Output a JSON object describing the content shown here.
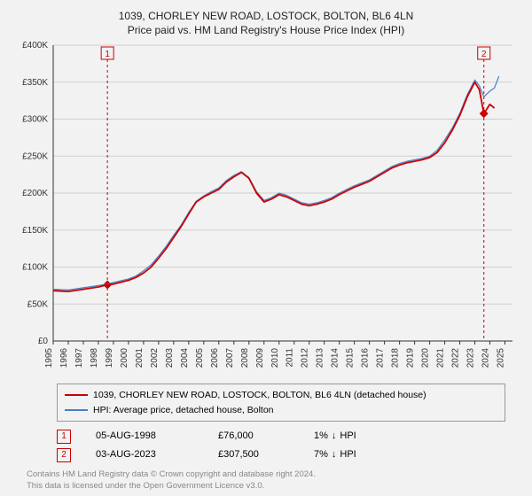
{
  "header": {
    "title": "1039, CHORLEY NEW ROAD, LOSTOCK, BOLTON, BL6 4LN",
    "subtitle": "Price paid vs. HM Land Registry's House Price Index (HPI)"
  },
  "chart": {
    "type": "line",
    "background_color": "#f2f2f2",
    "grid_color": "#cfcfcf",
    "axis_color": "#333333",
    "xlim": [
      1995,
      2025.5
    ],
    "ylim": [
      0,
      400000
    ],
    "ytick_step": 50000,
    "ytick_labels": [
      "£0",
      "£50K",
      "£100K",
      "£150K",
      "£200K",
      "£250K",
      "£300K",
      "£350K",
      "£400K"
    ],
    "xticks": [
      1995,
      1996,
      1997,
      1998,
      1999,
      2000,
      2001,
      2002,
      2003,
      2004,
      2005,
      2006,
      2007,
      2008,
      2009,
      2010,
      2011,
      2012,
      2013,
      2014,
      2015,
      2016,
      2017,
      2018,
      2019,
      2020,
      2021,
      2022,
      2023,
      2024,
      2025
    ],
    "label_fontsize": 10,
    "series": [
      {
        "name": "price_paid",
        "label": "1039, CHORLEY NEW ROAD, LOSTOCK, BOLTON, BL6 4LN (detached house)",
        "color": "#cc0000",
        "line_width": 1.8,
        "data": [
          [
            1995.0,
            68000
          ],
          [
            1996.0,
            67000
          ],
          [
            1997.0,
            70000
          ],
          [
            1998.0,
            73000
          ],
          [
            1998.6,
            76000
          ],
          [
            1999.0,
            77000
          ],
          [
            2000.0,
            82000
          ],
          [
            2000.5,
            86000
          ],
          [
            2001.0,
            92000
          ],
          [
            2001.5,
            100000
          ],
          [
            2002.0,
            112000
          ],
          [
            2002.5,
            125000
          ],
          [
            2003.0,
            140000
          ],
          [
            2003.5,
            155000
          ],
          [
            2004.0,
            172000
          ],
          [
            2004.5,
            188000
          ],
          [
            2005.0,
            195000
          ],
          [
            2005.5,
            200000
          ],
          [
            2006.0,
            205000
          ],
          [
            2006.5,
            215000
          ],
          [
            2007.0,
            222000
          ],
          [
            2007.5,
            228000
          ],
          [
            2008.0,
            220000
          ],
          [
            2008.5,
            200000
          ],
          [
            2009.0,
            188000
          ],
          [
            2009.5,
            192000
          ],
          [
            2010.0,
            198000
          ],
          [
            2010.5,
            195000
          ],
          [
            2011.0,
            190000
          ],
          [
            2011.5,
            185000
          ],
          [
            2012.0,
            183000
          ],
          [
            2012.5,
            185000
          ],
          [
            2013.0,
            188000
          ],
          [
            2013.5,
            192000
          ],
          [
            2014.0,
            198000
          ],
          [
            2014.5,
            203000
          ],
          [
            2015.0,
            208000
          ],
          [
            2015.5,
            212000
          ],
          [
            2016.0,
            216000
          ],
          [
            2016.5,
            222000
          ],
          [
            2017.0,
            228000
          ],
          [
            2017.5,
            234000
          ],
          [
            2018.0,
            238000
          ],
          [
            2018.5,
            241000
          ],
          [
            2019.0,
            243000
          ],
          [
            2019.5,
            245000
          ],
          [
            2020.0,
            248000
          ],
          [
            2020.5,
            255000
          ],
          [
            2021.0,
            268000
          ],
          [
            2021.5,
            285000
          ],
          [
            2022.0,
            305000
          ],
          [
            2022.5,
            330000
          ],
          [
            2023.0,
            350000
          ],
          [
            2023.3,
            340000
          ],
          [
            2023.6,
            307500
          ],
          [
            2024.0,
            320000
          ],
          [
            2024.3,
            315000
          ]
        ]
      },
      {
        "name": "hpi",
        "label": "HPI: Average price, detached house, Bolton",
        "color": "#4a7fc4",
        "line_width": 1.2,
        "data": [
          [
            1995.0,
            70000
          ],
          [
            1996.0,
            69000
          ],
          [
            1997.0,
            72000
          ],
          [
            1998.0,
            75000
          ],
          [
            1998.6,
            77000
          ],
          [
            1999.0,
            79000
          ],
          [
            2000.0,
            84000
          ],
          [
            2000.5,
            88000
          ],
          [
            2001.0,
            95000
          ],
          [
            2001.5,
            103000
          ],
          [
            2002.0,
            115000
          ],
          [
            2002.5,
            128000
          ],
          [
            2003.0,
            143000
          ],
          [
            2003.5,
            157000
          ],
          [
            2004.0,
            174000
          ],
          [
            2004.5,
            189000
          ],
          [
            2005.0,
            196000
          ],
          [
            2005.5,
            202000
          ],
          [
            2006.0,
            207000
          ],
          [
            2006.5,
            217000
          ],
          [
            2007.0,
            224000
          ],
          [
            2007.5,
            229000
          ],
          [
            2008.0,
            221000
          ],
          [
            2008.5,
            202000
          ],
          [
            2009.0,
            190000
          ],
          [
            2009.5,
            194000
          ],
          [
            2010.0,
            200000
          ],
          [
            2010.5,
            197000
          ],
          [
            2011.0,
            192000
          ],
          [
            2011.5,
            187000
          ],
          [
            2012.0,
            185000
          ],
          [
            2012.5,
            187000
          ],
          [
            2013.0,
            190000
          ],
          [
            2013.5,
            194000
          ],
          [
            2014.0,
            200000
          ],
          [
            2014.5,
            205000
          ],
          [
            2015.0,
            210000
          ],
          [
            2015.5,
            214000
          ],
          [
            2016.0,
            218000
          ],
          [
            2016.5,
            224000
          ],
          [
            2017.0,
            230000
          ],
          [
            2017.5,
            236000
          ],
          [
            2018.0,
            240000
          ],
          [
            2018.5,
            243000
          ],
          [
            2019.0,
            245000
          ],
          [
            2019.5,
            247000
          ],
          [
            2020.0,
            250000
          ],
          [
            2020.5,
            258000
          ],
          [
            2021.0,
            272000
          ],
          [
            2021.5,
            288000
          ],
          [
            2022.0,
            308000
          ],
          [
            2022.5,
            333000
          ],
          [
            2023.0,
            353000
          ],
          [
            2023.3,
            345000
          ],
          [
            2023.6,
            330000
          ],
          [
            2024.0,
            338000
          ],
          [
            2024.3,
            342000
          ],
          [
            2024.6,
            358000
          ]
        ]
      }
    ],
    "markers": [
      {
        "id": "1",
        "x": 1998.6,
        "y": 76000,
        "color": "#cc0000",
        "badge_top_y": 400000
      },
      {
        "id": "2",
        "x": 2023.6,
        "y": 307500,
        "color": "#cc0000",
        "badge_top_y": 400000
      }
    ],
    "marker_vline_color": "#cc0000",
    "marker_vline_dash": "3,3"
  },
  "legend": {
    "items": [
      {
        "color": "#cc0000",
        "label": "1039, CHORLEY NEW ROAD, LOSTOCK, BOLTON, BL6 4LN (detached house)"
      },
      {
        "color": "#4a7fc4",
        "label": "HPI: Average price, detached house, Bolton"
      }
    ]
  },
  "marker_table": {
    "rows": [
      {
        "badge": "1",
        "date": "05-AUG-1998",
        "price": "£76,000",
        "pct": "1%",
        "arrow": "↓",
        "suffix": "HPI"
      },
      {
        "badge": "2",
        "date": "03-AUG-2023",
        "price": "£307,500",
        "pct": "7%",
        "arrow": "↓",
        "suffix": "HPI"
      }
    ]
  },
  "footer": {
    "line1": "Contains HM Land Registry data © Crown copyright and database right 2024.",
    "line2": "This data is licensed under the Open Government Licence v3.0."
  }
}
